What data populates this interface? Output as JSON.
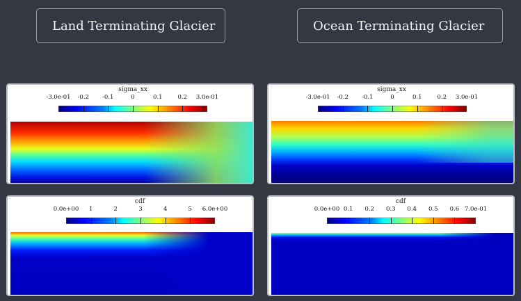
{
  "left_title": "Land Terminating Glacier",
  "right_title": "Ocean Terminating Glacier",
  "panels": {
    "land_sigma": {
      "name": "sigma_xx",
      "ticks": [
        "-3.0e-01",
        "-0.2",
        "-0.1",
        "0",
        "0.1",
        "0.2",
        "3.0e-01"
      ]
    },
    "land_cdf": {
      "name": "cdf",
      "ticks": [
        "0.0e+00",
        "1",
        "2",
        "3",
        "4",
        "5",
        "6.0e+00"
      ]
    },
    "ocean_sigma": {
      "name": "sigma_xx",
      "ticks": [
        "-3.0e-01",
        "-0.2",
        "-0.1",
        "0",
        "0.1",
        "0.2",
        "3.0e-01"
      ]
    },
    "ocean_cdf": {
      "name": "cdf",
      "ticks": [
        "0.0e+00",
        "0.1",
        "0.2",
        "0.3",
        "0.4",
        "0.5",
        "0.6",
        "7.0e-01"
      ]
    }
  },
  "colormap": [
    "#00007f",
    "#0000ff",
    "#0080ff",
    "#00ffff",
    "#80ff80",
    "#ffff00",
    "#ff8000",
    "#ff0000",
    "#800000"
  ]
}
